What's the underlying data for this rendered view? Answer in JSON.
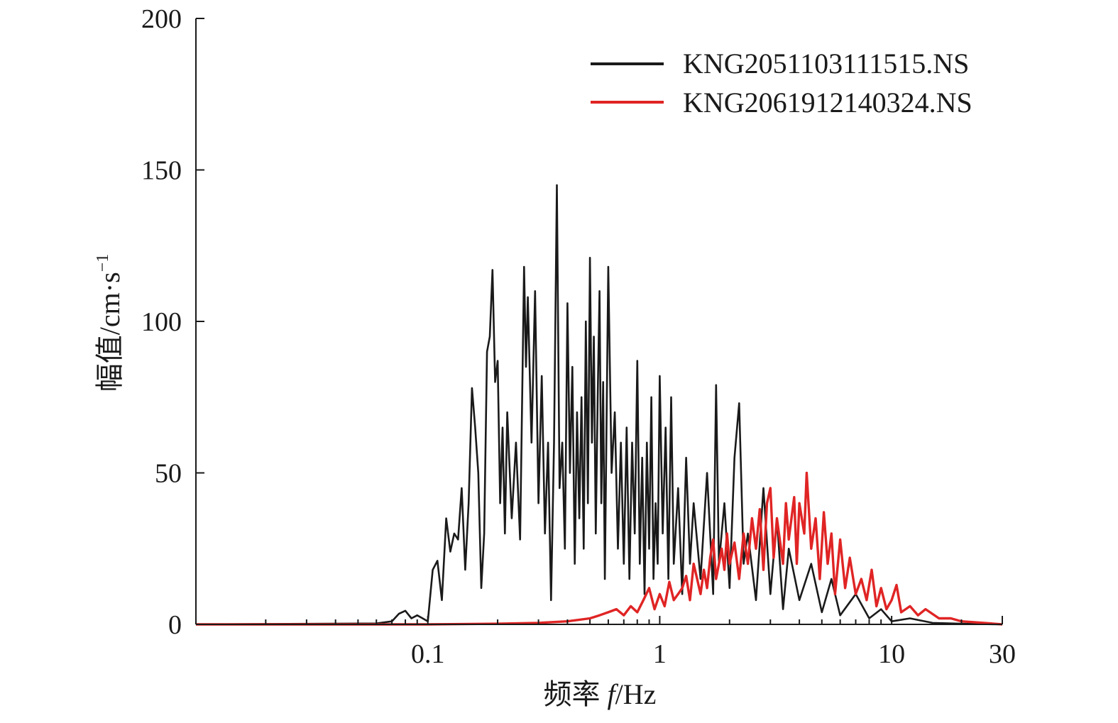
{
  "chart_data": {
    "type": "line",
    "xlabel_prefix": "频率 ",
    "xlabel_var": "f",
    "xlabel_unit": "/Hz",
    "ylabel": "幅值/cm·s",
    "ylabel_exp": "−1",
    "x_scale": "log",
    "xlim": [
      0.01,
      30
    ],
    "ylim": [
      0,
      200
    ],
    "x_ticks": [
      {
        "value": 0.1,
        "label": "0.1"
      },
      {
        "value": 1,
        "label": "1"
      },
      {
        "value": 10,
        "label": "10"
      },
      {
        "value": 30,
        "label": "30"
      }
    ],
    "y_ticks": [
      {
        "value": 0,
        "label": "0"
      },
      {
        "value": 50,
        "label": "50"
      },
      {
        "value": 100,
        "label": "100"
      },
      {
        "value": 150,
        "label": "150"
      },
      {
        "value": 200,
        "label": "200"
      }
    ],
    "legend_position": "top-right",
    "grid": false,
    "series": [
      {
        "name": "KNG2051103111515.NS",
        "color": "#1a1a1a",
        "points": [
          [
            0.01,
            0
          ],
          [
            0.06,
            0.3
          ],
          [
            0.07,
            1
          ],
          [
            0.075,
            3.5
          ],
          [
            0.08,
            4.5
          ],
          [
            0.085,
            2
          ],
          [
            0.09,
            3
          ],
          [
            0.095,
            2
          ],
          [
            0.1,
            1
          ],
          [
            0.105,
            18
          ],
          [
            0.11,
            21
          ],
          [
            0.115,
            8
          ],
          [
            0.12,
            35
          ],
          [
            0.125,
            24
          ],
          [
            0.13,
            30
          ],
          [
            0.135,
            28
          ],
          [
            0.14,
            45
          ],
          [
            0.145,
            18
          ],
          [
            0.15,
            40
          ],
          [
            0.155,
            78
          ],
          [
            0.16,
            65
          ],
          [
            0.165,
            50
          ],
          [
            0.17,
            12
          ],
          [
            0.175,
            30
          ],
          [
            0.18,
            90
          ],
          [
            0.185,
            95
          ],
          [
            0.19,
            117
          ],
          [
            0.195,
            80
          ],
          [
            0.2,
            87
          ],
          [
            0.205,
            40
          ],
          [
            0.21,
            65
          ],
          [
            0.215,
            30
          ],
          [
            0.22,
            70
          ],
          [
            0.23,
            35
          ],
          [
            0.24,
            60
          ],
          [
            0.25,
            28
          ],
          [
            0.26,
            118
          ],
          [
            0.265,
            85
          ],
          [
            0.27,
            108
          ],
          [
            0.28,
            60
          ],
          [
            0.29,
            110
          ],
          [
            0.3,
            40
          ],
          [
            0.31,
            82
          ],
          [
            0.32,
            30
          ],
          [
            0.33,
            60
          ],
          [
            0.34,
            8
          ],
          [
            0.35,
            60
          ],
          [
            0.36,
            145
          ],
          [
            0.37,
            45
          ],
          [
            0.38,
            60
          ],
          [
            0.39,
            25
          ],
          [
            0.4,
            106
          ],
          [
            0.41,
            50
          ],
          [
            0.42,
            85
          ],
          [
            0.43,
            20
          ],
          [
            0.44,
            70
          ],
          [
            0.45,
            35
          ],
          [
            0.46,
            75
          ],
          [
            0.47,
            25
          ],
          [
            0.48,
            100
          ],
          [
            0.49,
            40
          ],
          [
            0.5,
            121
          ],
          [
            0.51,
            60
          ],
          [
            0.52,
            95
          ],
          [
            0.53,
            30
          ],
          [
            0.54,
            75
          ],
          [
            0.55,
            110
          ],
          [
            0.56,
            40
          ],
          [
            0.57,
            80
          ],
          [
            0.58,
            15
          ],
          [
            0.6,
            118
          ],
          [
            0.62,
            50
          ],
          [
            0.64,
            70
          ],
          [
            0.66,
            25
          ],
          [
            0.68,
            60
          ],
          [
            0.7,
            20
          ],
          [
            0.72,
            65
          ],
          [
            0.74,
            15
          ],
          [
            0.76,
            60
          ],
          [
            0.78,
            30
          ],
          [
            0.8,
            87
          ],
          [
            0.82,
            20
          ],
          [
            0.84,
            55
          ],
          [
            0.86,
            10
          ],
          [
            0.88,
            60
          ],
          [
            0.9,
            25
          ],
          [
            0.92,
            75
          ],
          [
            0.94,
            15
          ],
          [
            0.96,
            40
          ],
          [
            0.98,
            20
          ],
          [
            1.0,
            82
          ],
          [
            1.03,
            30
          ],
          [
            1.06,
            65
          ],
          [
            1.09,
            15
          ],
          [
            1.12,
            75
          ],
          [
            1.15,
            20
          ],
          [
            1.2,
            45
          ],
          [
            1.25,
            10
          ],
          [
            1.3,
            55
          ],
          [
            1.35,
            20
          ],
          [
            1.4,
            40
          ],
          [
            1.5,
            15
          ],
          [
            1.6,
            50
          ],
          [
            1.7,
            10
          ],
          [
            1.75,
            79
          ],
          [
            1.8,
            20
          ],
          [
            1.9,
            40
          ],
          [
            2.0,
            12
          ],
          [
            2.1,
            55
          ],
          [
            2.2,
            73
          ],
          [
            2.3,
            20
          ],
          [
            2.4,
            30
          ],
          [
            2.6,
            8
          ],
          [
            2.8,
            45
          ],
          [
            3.0,
            10
          ],
          [
            3.2,
            35
          ],
          [
            3.4,
            5
          ],
          [
            3.6,
            25
          ],
          [
            4.0,
            8
          ],
          [
            4.5,
            20
          ],
          [
            5.0,
            4
          ],
          [
            5.5,
            15
          ],
          [
            6.0,
            3
          ],
          [
            7.0,
            10
          ],
          [
            8.0,
            2
          ],
          [
            9.0,
            5
          ],
          [
            10.0,
            1
          ],
          [
            12.0,
            2
          ],
          [
            15.0,
            0.5
          ],
          [
            20.0,
            0.2
          ],
          [
            30.0,
            0
          ]
        ]
      },
      {
        "name": "KNG2061912140324.NS",
        "color": "#e02424",
        "points": [
          [
            0.01,
            0
          ],
          [
            0.1,
            0
          ],
          [
            0.2,
            0.2
          ],
          [
            0.3,
            0.5
          ],
          [
            0.4,
            1
          ],
          [
            0.5,
            2
          ],
          [
            0.55,
            3
          ],
          [
            0.6,
            4
          ],
          [
            0.65,
            5
          ],
          [
            0.7,
            3
          ],
          [
            0.75,
            6
          ],
          [
            0.8,
            4
          ],
          [
            0.85,
            8
          ],
          [
            0.9,
            12
          ],
          [
            0.95,
            5
          ],
          [
            1.0,
            10
          ],
          [
            1.05,
            6
          ],
          [
            1.1,
            14
          ],
          [
            1.15,
            8
          ],
          [
            1.2,
            10
          ],
          [
            1.25,
            12
          ],
          [
            1.3,
            16
          ],
          [
            1.35,
            8
          ],
          [
            1.4,
            20
          ],
          [
            1.45,
            15
          ],
          [
            1.5,
            10
          ],
          [
            1.55,
            18
          ],
          [
            1.6,
            12
          ],
          [
            1.65,
            22
          ],
          [
            1.7,
            28
          ],
          [
            1.75,
            15
          ],
          [
            1.8,
            20
          ],
          [
            1.85,
            25
          ],
          [
            1.9,
            18
          ],
          [
            1.95,
            30
          ],
          [
            2.0,
            20
          ],
          [
            2.1,
            27
          ],
          [
            2.2,
            15
          ],
          [
            2.3,
            30
          ],
          [
            2.4,
            20
          ],
          [
            2.5,
            35
          ],
          [
            2.6,
            25
          ],
          [
            2.7,
            38
          ],
          [
            2.8,
            18
          ],
          [
            2.9,
            40
          ],
          [
            3.0,
            45
          ],
          [
            3.1,
            22
          ],
          [
            3.2,
            35
          ],
          [
            3.4,
            20
          ],
          [
            3.5,
            40
          ],
          [
            3.6,
            28
          ],
          [
            3.8,
            42
          ],
          [
            3.9,
            20
          ],
          [
            4.0,
            40
          ],
          [
            4.2,
            30
          ],
          [
            4.3,
            50
          ],
          [
            4.5,
            25
          ],
          [
            4.7,
            35
          ],
          [
            4.9,
            15
          ],
          [
            5.1,
            37
          ],
          [
            5.3,
            20
          ],
          [
            5.5,
            30
          ],
          [
            5.7,
            10
          ],
          [
            6.0,
            28
          ],
          [
            6.3,
            12
          ],
          [
            6.6,
            22
          ],
          [
            7.0,
            10
          ],
          [
            7.4,
            15
          ],
          [
            7.8,
            8
          ],
          [
            8.2,
            18
          ],
          [
            8.6,
            6
          ],
          [
            9.0,
            12
          ],
          [
            9.5,
            5
          ],
          [
            10.0,
            8
          ],
          [
            10.5,
            13
          ],
          [
            11.0,
            4
          ],
          [
            12.0,
            6
          ],
          [
            13.0,
            3
          ],
          [
            14.0,
            5
          ],
          [
            16.0,
            2
          ],
          [
            18.0,
            2
          ],
          [
            20.0,
            1
          ],
          [
            25.0,
            0.5
          ],
          [
            30.0,
            0
          ]
        ]
      }
    ]
  }
}
